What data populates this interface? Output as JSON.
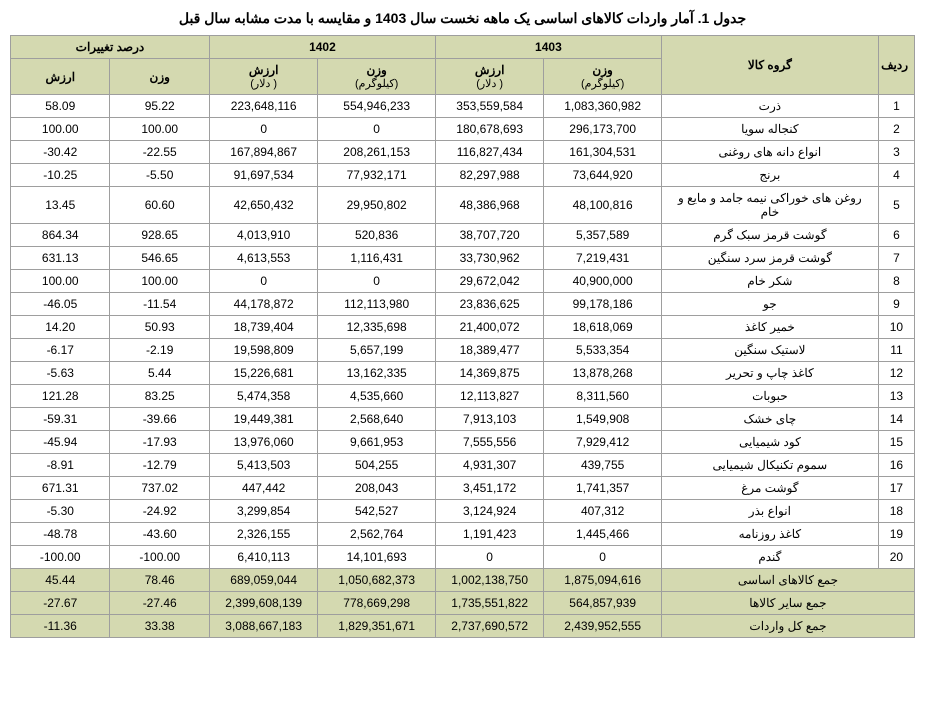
{
  "title": "جدول 1. آمار واردات کالاهای اساسی یک ماهه نخست سال 1403 و مقایسه با مدت مشابه سال قبل",
  "headers": {
    "row_idx": "ردیف",
    "product": "گروه کالا",
    "y1403": "1403",
    "y1402": "1402",
    "change": "درصد تغییرات",
    "weight": "وزن",
    "weight_unit": "(کیلوگرم)",
    "value": "ارزش",
    "value_unit": "( دلار)"
  },
  "rows": [
    {
      "idx": "1",
      "name": "ذرت",
      "w1403": "1,083,360,982",
      "v1403": "353,559,584",
      "w1402": "554,946,233",
      "v1402": "223,648,116",
      "pw": "95.22",
      "pv": "58.09"
    },
    {
      "idx": "2",
      "name": "کنجاله سویا",
      "w1403": "296,173,700",
      "v1403": "180,678,693",
      "w1402": "0",
      "v1402": "0",
      "pw": "100.00",
      "pv": "100.00"
    },
    {
      "idx": "3",
      "name": "انواع دانه های روغنی",
      "w1403": "161,304,531",
      "v1403": "116,827,434",
      "w1402": "208,261,153",
      "v1402": "167,894,867",
      "pw": "-22.55",
      "pv": "-30.42"
    },
    {
      "idx": "4",
      "name": "برنج",
      "w1403": "73,644,920",
      "v1403": "82,297,988",
      "w1402": "77,932,171",
      "v1402": "91,697,534",
      "pw": "-5.50",
      "pv": "-10.25"
    },
    {
      "idx": "5",
      "name": "روغن های خوراکی نیمه جامد و مایع و خام",
      "w1403": "48,100,816",
      "v1403": "48,386,968",
      "w1402": "29,950,802",
      "v1402": "42,650,432",
      "pw": "60.60",
      "pv": "13.45"
    },
    {
      "idx": "6",
      "name": "گوشت قرمز سبک گرم",
      "w1403": "5,357,589",
      "v1403": "38,707,720",
      "w1402": "520,836",
      "v1402": "4,013,910",
      "pw": "928.65",
      "pv": "864.34"
    },
    {
      "idx": "7",
      "name": "گوشت قرمز سرد سنگین",
      "w1403": "7,219,431",
      "v1403": "33,730,962",
      "w1402": "1,116,431",
      "v1402": "4,613,553",
      "pw": "546.65",
      "pv": "631.13"
    },
    {
      "idx": "8",
      "name": "شکر خام",
      "w1403": "40,900,000",
      "v1403": "29,672,042",
      "w1402": "0",
      "v1402": "0",
      "pw": "100.00",
      "pv": "100.00"
    },
    {
      "idx": "9",
      "name": "جو",
      "w1403": "99,178,186",
      "v1403": "23,836,625",
      "w1402": "112,113,980",
      "v1402": "44,178,872",
      "pw": "-11.54",
      "pv": "-46.05"
    },
    {
      "idx": "10",
      "name": "خمیر کاغذ",
      "w1403": "18,618,069",
      "v1403": "21,400,072",
      "w1402": "12,335,698",
      "v1402": "18,739,404",
      "pw": "50.93",
      "pv": "14.20"
    },
    {
      "idx": "11",
      "name": "لاستیک سنگین",
      "w1403": "5,533,354",
      "v1403": "18,389,477",
      "w1402": "5,657,199",
      "v1402": "19,598,809",
      "pw": "-2.19",
      "pv": "-6.17"
    },
    {
      "idx": "12",
      "name": "کاغذ چاپ و تحریر",
      "w1403": "13,878,268",
      "v1403": "14,369,875",
      "w1402": "13,162,335",
      "v1402": "15,226,681",
      "pw": "5.44",
      "pv": "-5.63"
    },
    {
      "idx": "13",
      "name": "حبوبات",
      "w1403": "8,311,560",
      "v1403": "12,113,827",
      "w1402": "4,535,660",
      "v1402": "5,474,358",
      "pw": "83.25",
      "pv": "121.28"
    },
    {
      "idx": "14",
      "name": "چای خشک",
      "w1403": "1,549,908",
      "v1403": "7,913,103",
      "w1402": "2,568,640",
      "v1402": "19,449,381",
      "pw": "-39.66",
      "pv": "-59.31"
    },
    {
      "idx": "15",
      "name": "کود شیمیایی",
      "w1403": "7,929,412",
      "v1403": "7,555,556",
      "w1402": "9,661,953",
      "v1402": "13,976,060",
      "pw": "-17.93",
      "pv": "-45.94"
    },
    {
      "idx": "16",
      "name": "سموم تکنیکال شیمیایی",
      "w1403": "439,755",
      "v1403": "4,931,307",
      "w1402": "504,255",
      "v1402": "5,413,503",
      "pw": "-12.79",
      "pv": "-8.91"
    },
    {
      "idx": "17",
      "name": "گوشت مرغ",
      "w1403": "1,741,357",
      "v1403": "3,451,172",
      "w1402": "208,043",
      "v1402": "447,442",
      "pw": "737.02",
      "pv": "671.31"
    },
    {
      "idx": "18",
      "name": "انواع بذر",
      "w1403": "407,312",
      "v1403": "3,124,924",
      "w1402": "542,527",
      "v1402": "3,299,854",
      "pw": "-24.92",
      "pv": "-5.30"
    },
    {
      "idx": "19",
      "name": "کاغذ روزنامه",
      "w1403": "1,445,466",
      "v1403": "1,191,423",
      "w1402": "2,562,764",
      "v1402": "2,326,155",
      "pw": "-43.60",
      "pv": "-48.78"
    },
    {
      "idx": "20",
      "name": "گندم",
      "w1403": "0",
      "v1403": "0",
      "w1402": "14,101,693",
      "v1402": "6,410,113",
      "pw": "-100.00",
      "pv": "-100.00"
    }
  ],
  "summary": [
    {
      "name": "جمع کالاهای اساسی",
      "w1403": "1,875,094,616",
      "v1403": "1,002,138,750",
      "w1402": "1,050,682,373",
      "v1402": "689,059,044",
      "pw": "78.46",
      "pv": "45.44"
    },
    {
      "name": "جمع سایر کالاها",
      "w1403": "564,857,939",
      "v1403": "1,735,551,822",
      "w1402": "778,669,298",
      "v1402": "2,399,608,139",
      "pw": "-27.46",
      "pv": "-27.67"
    },
    {
      "name": "جمع کل واردات",
      "w1403": "2,439,952,555",
      "v1403": "2,737,690,572",
      "w1402": "1,829,351,671",
      "v1402": "3,088,667,183",
      "pw": "33.38",
      "pv": "-11.36"
    }
  ],
  "colors": {
    "header_bg": "#d4d9b0",
    "border": "#9e9e9e",
    "body_bg": "#ffffff",
    "text": "#000000"
  }
}
